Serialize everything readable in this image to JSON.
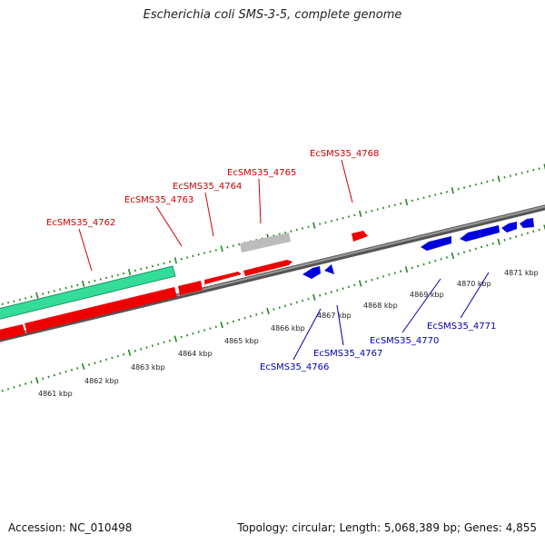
{
  "title": "Escherichia coli SMS-3-5, complete genome",
  "footer": {
    "accession": "Accession: NC_010498",
    "summary": "Topology: circular; Length: 5,068,389 bp; Genes: 4,855"
  },
  "colors": {
    "forward_gene": "#ee0000",
    "reverse_gene": "#0000dd",
    "rrna_feature": "#33dd99",
    "other_feature": "#bbbbbb",
    "tick": "#228822",
    "backbone": "#777777",
    "label_forward": "#cc0000",
    "label_reverse": "#0000aa"
  },
  "scale_labels": [
    "4861 kbp",
    "4862 kbp",
    "4863 kbp",
    "4864 kbp",
    "4865 kbp",
    "4866 kbp",
    "4867 kbp",
    "4868 kbp",
    "4869 kbp",
    "4870 kbp",
    "4871 kbp"
  ],
  "gene_labels_forward": [
    "EcSMS35_4762",
    "EcSMS35_4763",
    "EcSMS35_4764",
    "EcSMS35_4765",
    "EcSMS35_4768"
  ],
  "gene_labels_reverse": [
    "EcSMS35_4766",
    "EcSMS35_4767",
    "EcSMS35_4770",
    "EcSMS35_4771"
  ]
}
